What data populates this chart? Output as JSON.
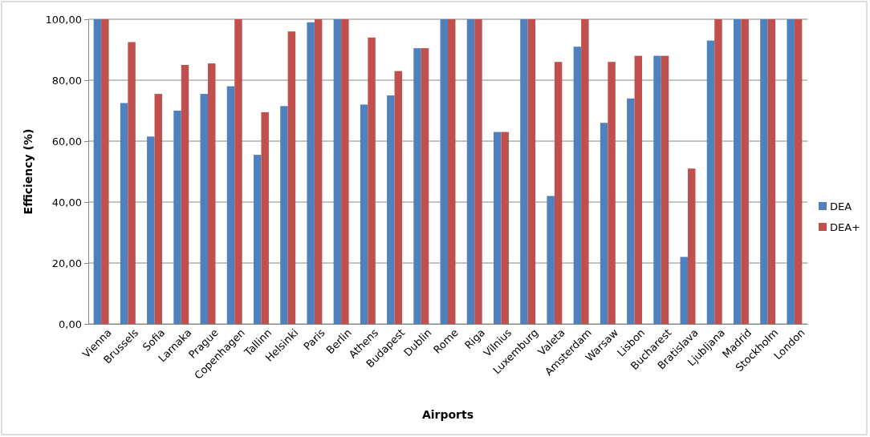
{
  "chart_data": {
    "type": "bar",
    "xlabel": "Airports",
    "ylabel": "Efficiency (%)",
    "categories": [
      "Vienna",
      "Brussels",
      "Sofia",
      "Larnaka",
      "Prague",
      "Copenhagen",
      "Tallinn",
      "Helsinki",
      "Paris",
      "Berlin",
      "Athens",
      "Budapest",
      "Dublin",
      "Rome",
      "Riga",
      "Vilnius",
      "Luxemburg",
      "Valeta",
      "Amsterdam",
      "Warsaw",
      "Lisbon",
      "Bucharest",
      "Bratislava",
      "Ljubljana",
      "Madrid",
      "Stockholm",
      "London"
    ],
    "series": [
      {
        "name": "DEA",
        "color": "#4f81bd",
        "values": [
          100,
          72.5,
          61.5,
          70,
          75.5,
          78,
          55.5,
          71.5,
          99,
          100,
          72,
          75,
          90.5,
          100,
          100,
          63,
          100,
          42,
          91,
          66,
          74,
          88,
          22,
          93,
          100,
          100,
          100
        ]
      },
      {
        "name": "DEA+",
        "color": "#c0504d",
        "values": [
          100,
          92.5,
          75.5,
          85,
          85.5,
          100,
          69.5,
          96,
          100,
          100,
          94,
          83,
          90.5,
          100,
          100,
          63,
          100,
          86,
          100,
          86,
          88,
          88,
          51,
          100,
          100,
          100,
          100
        ]
      }
    ],
    "ylim": [
      0,
      100
    ],
    "yticks": [
      {
        "value": 0,
        "label": "0,00"
      },
      {
        "value": 20,
        "label": "20,00"
      },
      {
        "value": 40,
        "label": "40,00"
      },
      {
        "value": 60,
        "label": "60,00"
      },
      {
        "value": 80,
        "label": "80,00"
      },
      {
        "value": 100,
        "label": "100,00"
      }
    ],
    "grid": "y",
    "legend": "right"
  }
}
